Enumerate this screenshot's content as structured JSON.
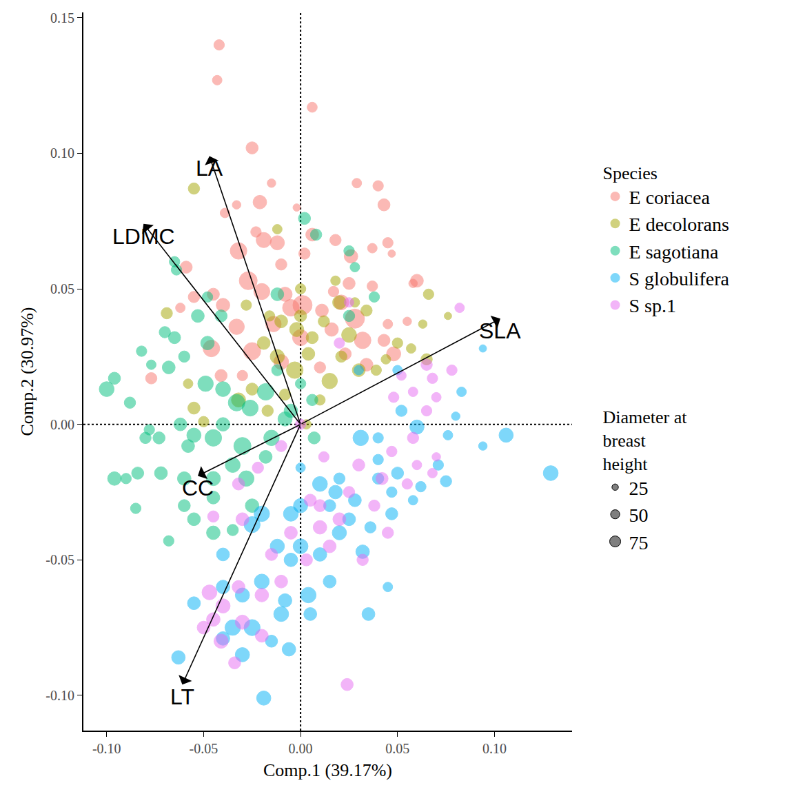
{
  "chart_data": {
    "type": "scatter",
    "x_label": "Comp.1 (39.17%)",
    "y_label": "Comp.2 (30.97%)",
    "xlim": [
      -0.112,
      0.14
    ],
    "ylim": [
      -0.113,
      0.152
    ],
    "xticks": [
      {
        "value": -0.1,
        "label": "-0.10"
      },
      -0.05,
      {
        "value": 0,
        "label": "0.00"
      },
      0.05,
      {
        "value": 0.1,
        "label": "0.10"
      }
    ],
    "yticks": [
      {
        "value": -0.1,
        "label": "-0.10"
      },
      -0.05,
      {
        "value": 0,
        "label": "0.00"
      },
      0.05,
      {
        "value": 0.1,
        "label": "0.10"
      },
      0.15
    ],
    "grid": false,
    "legend": "right",
    "legend_title": "Species",
    "size_legend": {
      "title": [
        "Diameter at",
        "breast",
        "height"
      ],
      "values": [
        25,
        50,
        75
      ]
    },
    "annotations": [
      {
        "text": "LA",
        "x": -0.047,
        "y": 0.099
      },
      {
        "text": "LDMC",
        "x": -0.081,
        "y": 0.074
      },
      {
        "text": "SLA",
        "x": 0.103,
        "y": 0.039
      },
      {
        "text": "CC",
        "x": -0.053,
        "y": -0.019
      },
      {
        "text": "LT",
        "x": -0.061,
        "y": -0.096
      }
    ],
    "series": [
      {
        "name": "E coriacea",
        "color": "#F8766D",
        "x": [
          -0.042,
          -0.043,
          0.006,
          -0.025,
          -0.015,
          0.029,
          0.04,
          0.043,
          -0.021,
          -0.033,
          -0.039,
          -0.002,
          0.006,
          0.002,
          -0.012,
          -0.019,
          -0.032,
          -0.023,
          0.018,
          0.026,
          0.037,
          0.045,
          -0.027,
          -0.02,
          0.001,
          -0.008,
          0.011,
          0.021,
          0.025,
          0.037,
          0.058,
          0.06,
          -0.04,
          -0.045,
          -0.033,
          -0.046,
          -0.059,
          -0.055,
          -0.062,
          -0.025,
          -0.01,
          0.016,
          0.028,
          0.032,
          0.034,
          0.048,
          0.045,
          0.055,
          0.01,
          0.023,
          -0.03,
          -0.041,
          -0.077,
          0,
          -0.005,
          -0.014,
          0.017,
          0.043,
          0.047,
          -0.01
        ],
        "y": [
          0.14,
          0.127,
          0.117,
          0.102,
          0.089,
          0.089,
          0.088,
          0.081,
          0.082,
          0.081,
          0.078,
          0.08,
          0.07,
          0.063,
          0.067,
          0.068,
          0.064,
          0.071,
          0.068,
          0.062,
          0.065,
          0.067,
          0.053,
          0.049,
          0.044,
          0.048,
          0.042,
          0.045,
          0.052,
          0.051,
          0.052,
          0.053,
          0.044,
          0.048,
          0.036,
          0.028,
          0.058,
          0.047,
          0.043,
          0.027,
          0.023,
          0.035,
          0.039,
          0.031,
          0.022,
          0.026,
          0.037,
          0.038,
          0.021,
          0.026,
          0.018,
          0.018,
          0.017,
          0.032,
          0.043,
          0.037,
          0.049,
          0.031,
          0.063,
          0.059
        ],
        "size": [
          12,
          10,
          11,
          16,
          8,
          10,
          12,
          16,
          20,
          8,
          10,
          6,
          18,
          14,
          22,
          25,
          30,
          12,
          14,
          20,
          10,
          12,
          35,
          28,
          40,
          22,
          18,
          24,
          16,
          12,
          8,
          18,
          20,
          16,
          26,
          30,
          16,
          14,
          10,
          32,
          24,
          20,
          40,
          30,
          18,
          22,
          10,
          8,
          14,
          16,
          12,
          16,
          14,
          28,
          30,
          26,
          12,
          16,
          6,
          14
        ]
      },
      {
        "name": "E decolorans",
        "color": "#A3A500",
        "x": [
          -0.055,
          -0.069,
          -0.028,
          -0.01,
          -0.002,
          0.006,
          0.012,
          0.02,
          0.025,
          0.021,
          0.03,
          0.039,
          0.044,
          0.05,
          0.057,
          0.065,
          0.063,
          0.066,
          0.076,
          0.004,
          -0.003,
          -0.012,
          -0.019,
          -0.025,
          -0.008,
          0.015,
          0,
          -0.016,
          0.034,
          0.018,
          -0.055,
          -0.05,
          -0.058,
          -0.032,
          0.01,
          -0.017,
          0.003,
          0.028,
          -0.012,
          0
        ],
        "y": [
          0.087,
          0.041,
          0.044,
          0.038,
          0.035,
          0.032,
          0.038,
          0.045,
          0.033,
          0.025,
          0.02,
          0.02,
          0.024,
          0.03,
          0.028,
          0.024,
          0.037,
          0.048,
          0.04,
          0.026,
          0.02,
          0.025,
          0.03,
          0.013,
          0.011,
          0.016,
          0.05,
          0.04,
          0.042,
          0.053,
          0.006,
          0.001,
          0.015,
          0.009,
          0.009,
          0.005,
          0,
          0.045,
          0.072,
          0.04
        ],
        "size": [
          14,
          14,
          12,
          18,
          22,
          16,
          14,
          20,
          24,
          14,
          18,
          12,
          10,
          12,
          10,
          14,
          8,
          12,
          6,
          18,
          30,
          22,
          18,
          16,
          14,
          26,
          12,
          12,
          14,
          10,
          16,
          12,
          10,
          22,
          12,
          14,
          10,
          10,
          10,
          16
        ]
      },
      {
        "name": "E sagotiana",
        "color": "#00BF7D",
        "x": [
          0.002,
          -0.065,
          -0.064,
          -0.048,
          -0.041,
          -0.053,
          -0.012,
          0.008,
          0.025,
          0.028,
          0.038,
          0.025,
          -0.082,
          -0.077,
          -0.068,
          -0.07,
          -0.065,
          -0.06,
          -0.048,
          -0.049,
          -0.04,
          -0.033,
          -0.026,
          -0.018,
          -0.008,
          -0.015,
          -0.03,
          -0.045,
          -0.055,
          -0.062,
          -0.073,
          -0.08,
          -0.088,
          -0.096,
          -0.1,
          -0.078,
          -0.06,
          -0.045,
          -0.035,
          -0.028,
          -0.018,
          -0.09,
          -0.085,
          -0.096,
          -0.072,
          -0.084,
          -0.06,
          -0.055,
          -0.045,
          -0.035,
          -0.068,
          -0.045,
          -0.058,
          -0.04,
          -0.025,
          0.007,
          0.006,
          -0.005,
          -0.012,
          0
        ],
        "y": [
          0.076,
          0.06,
          0.057,
          0.047,
          0.04,
          0.04,
          0.048,
          0.07,
          0.064,
          0.058,
          0.047,
          0.04,
          0.027,
          0.022,
          0.021,
          0.034,
          0.032,
          0.025,
          0.03,
          0.015,
          0.013,
          0.008,
          0.006,
          0.012,
          0.002,
          -0.005,
          -0.008,
          -0.005,
          -0.004,
          0,
          -0.005,
          -0.005,
          0.008,
          0.017,
          0.013,
          -0.002,
          -0.02,
          -0.02,
          -0.015,
          -0.02,
          -0.012,
          -0.02,
          -0.031,
          -0.02,
          -0.018,
          -0.018,
          -0.03,
          -0.035,
          -0.04,
          -0.039,
          -0.043,
          -0.027,
          -0.008,
          0,
          -0.03,
          -0.005,
          0.009,
          0.005,
          0.02,
          0.015
        ],
        "size": [
          16,
          12,
          12,
          12,
          16,
          18,
          18,
          14,
          12,
          10,
          12,
          14,
          12,
          10,
          18,
          14,
          16,
          14,
          20,
          26,
          24,
          30,
          28,
          30,
          22,
          26,
          32,
          30,
          22,
          18,
          16,
          14,
          14,
          16,
          24,
          12,
          20,
          22,
          24,
          26,
          18,
          12,
          12,
          20,
          18,
          16,
          16,
          18,
          20,
          14,
          12,
          18,
          18,
          20,
          20,
          16,
          14,
          20,
          14,
          12
        ]
      },
      {
        "name": "S globulifera",
        "color": "#00B0F6",
        "x": [
          0.129,
          0.106,
          0.094,
          0.094,
          0.076,
          0.06,
          0.052,
          0.04,
          0.031,
          0.03,
          0.05,
          0.071,
          0.075,
          0.062,
          0.05,
          0.047,
          0.036,
          0.028,
          0.018,
          0.01,
          0,
          -0.005,
          -0.02,
          -0.025,
          -0.012,
          0,
          0.01,
          0.02,
          0.032,
          0.035,
          0.004,
          -0.008,
          -0.02,
          -0.03,
          -0.035,
          -0.025,
          -0.03,
          -0.04,
          -0.055,
          -0.063,
          -0.019,
          -0.006,
          -0.015,
          -0.04,
          -0.04,
          0.015,
          0.015,
          0.045,
          0.02,
          0,
          0.04,
          0.058,
          0.047,
          0.083,
          0.08,
          0.04,
          -0.005,
          0.025,
          -0.01,
          0.005
        ],
        "y": [
          -0.018,
          -0.004,
          0.028,
          -0.008,
          -0.004,
          -0.001,
          0.005,
          -0.005,
          -0.005,
          0.02,
          0.02,
          -0.015,
          -0.021,
          -0.023,
          -0.018,
          -0.033,
          -0.038,
          -0.028,
          -0.025,
          -0.022,
          -0.03,
          -0.033,
          -0.033,
          -0.037,
          -0.045,
          -0.045,
          -0.048,
          -0.04,
          -0.047,
          -0.07,
          -0.063,
          -0.065,
          -0.058,
          -0.063,
          -0.075,
          -0.075,
          -0.085,
          -0.079,
          -0.066,
          -0.086,
          -0.101,
          -0.083,
          -0.08,
          -0.048,
          -0.06,
          -0.058,
          -0.03,
          -0.06,
          -0.02,
          -0.016,
          -0.02,
          -0.028,
          -0.025,
          0.012,
          0.003,
          -0.013,
          -0.05,
          -0.035,
          -0.07,
          -0.07
        ],
        "size": [
          24,
          22,
          6,
          8,
          10,
          22,
          14,
          12,
          26,
          10,
          10,
          12,
          14,
          12,
          16,
          16,
          14,
          18,
          20,
          24,
          22,
          24,
          26,
          28,
          22,
          24,
          20,
          22,
          20,
          18,
          26,
          20,
          24,
          22,
          26,
          28,
          22,
          20,
          18,
          20,
          22,
          20,
          16,
          18,
          20,
          18,
          16,
          10,
          14,
          10,
          14,
          10,
          12,
          10,
          8,
          12,
          20,
          18,
          24,
          18
        ]
      },
      {
        "name": "S sp.1",
        "color": "#E76BF3",
        "x": [
          0.082,
          0.078,
          0.068,
          0.07,
          0.065,
          0.052,
          0.048,
          0.058,
          0.065,
          0.058,
          0.047,
          0.06,
          0.07,
          0.068,
          0.055,
          0.042,
          0.038,
          0.03,
          0.02,
          0.01,
          0.005,
          0,
          -0.022,
          -0.032,
          -0.03,
          -0.045,
          -0.047,
          -0.04,
          -0.045,
          -0.032,
          -0.02,
          -0.01,
          -0.03,
          -0.02,
          -0.034,
          -0.05,
          -0.041,
          0.024,
          0.015,
          0.025,
          0.012,
          -0.01,
          0.025,
          0.02,
          0.045,
          0.003,
          -0.005,
          -0.015,
          0.032,
          0.01
        ],
        "y": [
          0.043,
          0.02,
          0.017,
          0.01,
          0.022,
          0.018,
          0.01,
          0.012,
          0.005,
          -0.005,
          -0.01,
          -0.015,
          -0.012,
          -0.018,
          -0.022,
          -0.02,
          -0.03,
          -0.015,
          -0.035,
          -0.038,
          -0.028,
          0,
          -0.016,
          -0.022,
          -0.035,
          -0.034,
          -0.062,
          -0.067,
          -0.072,
          -0.06,
          -0.063,
          -0.058,
          -0.073,
          -0.078,
          -0.088,
          -0.075,
          -0.08,
          -0.096,
          -0.045,
          -0.025,
          -0.012,
          -0.008,
          0.045,
          0.03,
          -0.04,
          -0.05,
          -0.04,
          -0.048,
          -0.05,
          -0.03
        ],
        "size": [
          10,
          12,
          12,
          10,
          14,
          10,
          12,
          10,
          12,
          14,
          12,
          10,
          8,
          10,
          12,
          16,
          14,
          16,
          18,
          20,
          16,
          12,
          14,
          16,
          18,
          14,
          24,
          22,
          20,
          18,
          20,
          18,
          22,
          18,
          16,
          18,
          22,
          16,
          18,
          14,
          12,
          14,
          10,
          12,
          14,
          16,
          18,
          16,
          14,
          16
        ]
      }
    ]
  }
}
